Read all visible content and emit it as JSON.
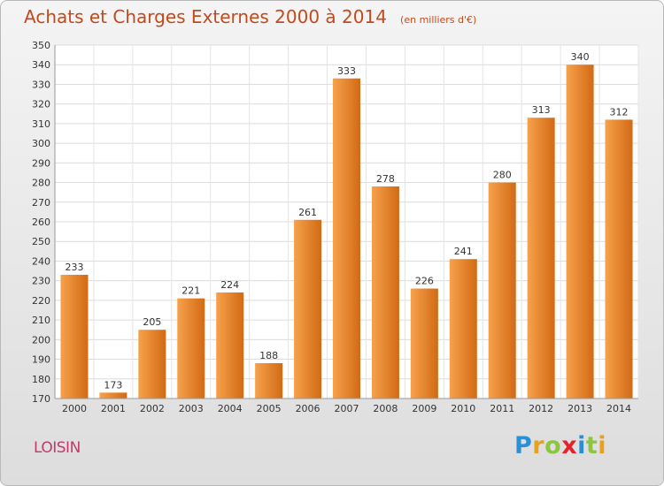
{
  "header": {
    "title": "Achats et Charges Externes 2000 à 2014",
    "subtitle": "(en milliers d'€)"
  },
  "commune": "LOISIN",
  "brand": {
    "name": "Proxiti",
    "letters": [
      {
        "ch": "P",
        "color": "#2b8fd6"
      },
      {
        "ch": "r",
        "color": "#e8a11c"
      },
      {
        "ch": "o",
        "color": "#8cc63e"
      },
      {
        "ch": "x",
        "color": "#e4232c"
      },
      {
        "ch": "i",
        "color": "#2b8fd6"
      },
      {
        "ch": "t",
        "color": "#8cc63e"
      },
      {
        "ch": "i",
        "color": "#e8a11c"
      }
    ]
  },
  "chart_data": {
    "type": "bar",
    "categories": [
      "2000",
      "2001",
      "2002",
      "2003",
      "2004",
      "2005",
      "2006",
      "2007",
      "2008",
      "2009",
      "2010",
      "2011",
      "2012",
      "2013",
      "2014"
    ],
    "values": [
      233,
      173,
      205,
      221,
      224,
      188,
      261,
      333,
      278,
      226,
      241,
      280,
      313,
      340,
      312
    ],
    "ylim": [
      170,
      350
    ],
    "ytick_step": 10,
    "grid": true,
    "data_labels": true,
    "bar_color_light": "#f7a14c",
    "bar_color_dark": "#d26a14"
  }
}
